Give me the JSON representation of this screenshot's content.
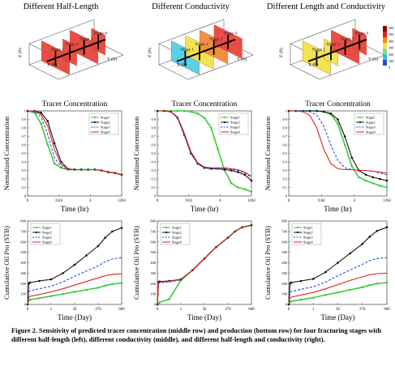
{
  "column_titles": [
    "Different Half-Length",
    "Different Conductivity",
    "Different Length and Conductivity"
  ],
  "schematic": {
    "stage_labels": [
      "Stage 1",
      "Stage 2",
      "Stage 3",
      "Stage 4"
    ],
    "axis_labels": {
      "x": "X (ft)",
      "y": "Y (ft)",
      "z": "Z (ft)"
    },
    "colorbar_ticks": [
      "600",
      "500",
      "400",
      "300",
      "200",
      "100",
      "0"
    ],
    "colors": {
      "red": "#e8453c",
      "orange": "#f08a3c",
      "yellow": "#f2e24a",
      "cyan": "#4fd0e8",
      "well": "#000000"
    },
    "panels": [
      {
        "fracs": [
          {
            "stage": "Stage 1",
            "color": "#e8453c",
            "len": 1.0
          },
          {
            "stage": "Stage 2",
            "color": "#e8453c",
            "len": 0.5
          },
          {
            "stage": "Stage 3",
            "color": "#e8453c",
            "len": 1.0
          },
          {
            "stage": "Stage 4",
            "color": "#e8453c",
            "len": 0.5
          }
        ]
      },
      {
        "fracs": [
          {
            "stage": "Stage 1",
            "color": "#4fd0e8",
            "len": 1.0
          },
          {
            "stage": "Stage 2",
            "color": "#f2e24a",
            "len": 1.0
          },
          {
            "stage": "Stage 3",
            "color": "#f08a3c",
            "len": 1.0
          },
          {
            "stage": "Stage 4",
            "color": "#e8453c",
            "len": 1.0
          }
        ]
      },
      {
        "fracs": [
          {
            "stage": "Stage 1",
            "color": "#f2e24a",
            "len": 1.0
          },
          {
            "stage": "Stage 2",
            "color": "#f2e24a",
            "len": 0.5
          },
          {
            "stage": "Stage 3",
            "color": "#e8453c",
            "len": 1.0
          },
          {
            "stage": "Stage 4",
            "color": "#e8453c",
            "len": 0.5
          }
        ]
      }
    ]
  },
  "tracer": {
    "title": "Tracer Concentration",
    "xlabel": "Time (hr)",
    "ylabel": "Normalized Concentration",
    "xticks": [
      "0",
      "0.04",
      "4",
      "1264"
    ],
    "yticks": [
      "0",
      "0.1",
      "0.2",
      "0.3",
      "0.4",
      "0.5",
      "0.6",
      "0.7",
      "0.8",
      "0.9",
      "1"
    ]
  },
  "production": {
    "xlabel": "Time (Day)",
    "ylabel": "Cumulative Oil Pro (STB)",
    "xticks": [
      "0",
      "1",
      "30",
      "270",
      "600"
    ],
    "yticks": [
      "0",
      "100",
      "200",
      "300",
      "400",
      "500",
      "600",
      "700",
      "800"
    ]
  },
  "legend_entries": [
    "Stage1",
    "Stage2",
    "Stage3",
    "Stage4"
  ],
  "series_colors": {
    "Stage1": "#3ec93e",
    "Stage2": "#111111",
    "Stage3": "#1f4fd8",
    "Stage4": "#e02020"
  },
  "chart_data": [
    {
      "type": "line",
      "panel": "tracer-half-length",
      "xlabel": "Time (hr)",
      "ylabel": "Normalized Concentration",
      "xticks": [
        "0",
        "0.04",
        "4",
        "1264"
      ],
      "ylim": [
        0,
        1
      ],
      "x": [
        0,
        0.5,
        1,
        1.5,
        2,
        2.5,
        3,
        3.5,
        4,
        4.5,
        5,
        5.5,
        6,
        6.5,
        7
      ],
      "series": [
        {
          "name": "Stage1",
          "values": [
            1.0,
            0.98,
            0.85,
            0.6,
            0.38,
            0.33,
            0.31,
            0.31,
            0.31,
            0.31,
            0.31,
            0.3,
            0.28,
            0.27,
            0.25
          ]
        },
        {
          "name": "Stage2",
          "values": [
            1.0,
            1.0,
            0.98,
            0.88,
            0.62,
            0.4,
            0.32,
            0.31,
            0.31,
            0.31,
            0.31,
            0.3,
            0.28,
            0.27,
            0.25
          ]
        },
        {
          "name": "Stage3",
          "values": [
            1.0,
            0.99,
            0.93,
            0.72,
            0.45,
            0.34,
            0.31,
            0.31,
            0.31,
            0.31,
            0.31,
            0.3,
            0.28,
            0.27,
            0.25
          ]
        },
        {
          "name": "Stage4",
          "values": [
            1.0,
            1.0,
            0.96,
            0.82,
            0.55,
            0.37,
            0.32,
            0.31,
            0.31,
            0.31,
            0.31,
            0.3,
            0.28,
            0.27,
            0.25
          ]
        }
      ]
    },
    {
      "type": "line",
      "panel": "tracer-conductivity",
      "xlabel": "Time (hr)",
      "ylabel": "Normalized Concentration",
      "xticks": [
        "0",
        "0.04",
        "4",
        "1264"
      ],
      "ylim": [
        0,
        1
      ],
      "x": [
        0,
        0.5,
        1,
        1.5,
        2,
        2.5,
        3,
        3.5,
        4,
        4.5,
        5,
        5.5,
        6,
        6.5,
        7
      ],
      "series": [
        {
          "name": "Stage1",
          "values": [
            1.0,
            1.0,
            1.0,
            1.0,
            1.0,
            0.99,
            0.97,
            0.92,
            0.8,
            0.55,
            0.3,
            0.15,
            0.1,
            0.08,
            0.05
          ]
        },
        {
          "name": "Stage2",
          "values": [
            1.0,
            1.0,
            0.99,
            0.92,
            0.72,
            0.5,
            0.38,
            0.33,
            0.32,
            0.32,
            0.31,
            0.3,
            0.28,
            0.25,
            0.18
          ]
        },
        {
          "name": "Stage3",
          "values": [
            1.0,
            1.0,
            0.99,
            0.92,
            0.72,
            0.5,
            0.38,
            0.33,
            0.32,
            0.32,
            0.32,
            0.31,
            0.3,
            0.27,
            0.22
          ]
        },
        {
          "name": "Stage4",
          "values": [
            1.0,
            1.0,
            0.99,
            0.93,
            0.74,
            0.52,
            0.39,
            0.34,
            0.33,
            0.33,
            0.33,
            0.32,
            0.31,
            0.28,
            0.23
          ]
        }
      ]
    },
    {
      "type": "line",
      "panel": "tracer-length-conductivity",
      "xlabel": "Time (hr)",
      "ylabel": "Normalized Concentration",
      "xticks": [
        "0",
        "0.04",
        "4",
        "1264"
      ],
      "ylim": [
        0,
        1
      ],
      "x": [
        0,
        0.5,
        1,
        1.5,
        2,
        2.5,
        3,
        3.5,
        4,
        4.5,
        5,
        5.5,
        6,
        6.5,
        7
      ],
      "series": [
        {
          "name": "Stage1",
          "values": [
            1.0,
            1.0,
            1.0,
            1.0,
            1.0,
            0.99,
            0.96,
            0.85,
            0.6,
            0.35,
            0.22,
            0.18,
            0.15,
            0.12,
            0.1
          ]
        },
        {
          "name": "Stage2",
          "values": [
            1.0,
            1.0,
            1.0,
            1.0,
            1.0,
            0.99,
            0.97,
            0.9,
            0.7,
            0.45,
            0.3,
            0.25,
            0.22,
            0.2,
            0.18
          ]
        },
        {
          "name": "Stage3",
          "values": [
            1.0,
            1.0,
            1.0,
            0.99,
            0.95,
            0.82,
            0.6,
            0.42,
            0.33,
            0.31,
            0.3,
            0.3,
            0.29,
            0.27,
            0.25
          ]
        },
        {
          "name": "Stage4",
          "values": [
            1.0,
            1.0,
            0.99,
            0.95,
            0.8,
            0.55,
            0.38,
            0.32,
            0.31,
            0.31,
            0.3,
            0.3,
            0.29,
            0.28,
            0.27
          ]
        }
      ]
    },
    {
      "type": "line",
      "panel": "production-half-length",
      "xlabel": "Time (Day)",
      "ylabel": "Cumulative Oil Pro (STB)",
      "xticks": [
        "0",
        "1",
        "30",
        "270",
        "600"
      ],
      "ylim": [
        0,
        800
      ],
      "x": [
        0,
        0.05,
        0.1,
        0.5,
        1,
        1.5,
        2,
        2.5,
        3,
        3.3,
        3.6,
        4
      ],
      "series": [
        {
          "name": "Stage1",
          "values": [
            0,
            40,
            45,
            60,
            80,
            100,
            120,
            140,
            160,
            180,
            195,
            205
          ]
        },
        {
          "name": "Stage2",
          "values": [
            0,
            200,
            210,
            225,
            240,
            300,
            380,
            470,
            560,
            640,
            700,
            735
          ]
        },
        {
          "name": "Stage3",
          "values": [
            0,
            120,
            130,
            150,
            175,
            215,
            270,
            320,
            370,
            410,
            435,
            450
          ]
        },
        {
          "name": "Stage4",
          "values": [
            0,
            70,
            78,
            95,
            120,
            150,
            185,
            220,
            255,
            275,
            288,
            295
          ]
        }
      ]
    },
    {
      "type": "line",
      "panel": "production-conductivity",
      "xlabel": "Time (Day)",
      "ylabel": "Cumulative Oil Pro (STB)",
      "xticks": [
        "0",
        "1",
        "30",
        "270",
        "600"
      ],
      "ylim": [
        0,
        800
      ],
      "x": [
        0,
        0.05,
        0.1,
        0.5,
        1,
        1.5,
        2,
        2.5,
        3,
        3.3,
        3.6,
        4
      ],
      "series": [
        {
          "name": "Stage1",
          "values": [
            0,
            10,
            20,
            50,
            230,
            330,
            440,
            550,
            640,
            700,
            740,
            760
          ]
        },
        {
          "name": "Stage2",
          "values": [
            0,
            215,
            220,
            225,
            240,
            330,
            440,
            550,
            640,
            700,
            740,
            760
          ]
        },
        {
          "name": "Stage3",
          "values": [
            0,
            200,
            210,
            215,
            235,
            330,
            440,
            550,
            640,
            700,
            740,
            760
          ]
        },
        {
          "name": "Stage4",
          "values": [
            0,
            205,
            215,
            222,
            238,
            330,
            440,
            550,
            640,
            700,
            740,
            760
          ]
        }
      ]
    },
    {
      "type": "line",
      "panel": "production-length-conductivity",
      "xlabel": "Time (Day)",
      "ylabel": "Cumulative Oil Pro (STB)",
      "xticks": [
        "0",
        "1",
        "30",
        "270",
        "600"
      ],
      "ylim": [
        0,
        800
      ],
      "x": [
        0,
        0.05,
        0.1,
        0.5,
        1,
        1.5,
        2,
        2.5,
        3,
        3.3,
        3.6,
        4
      ],
      "series": [
        {
          "name": "Stage1",
          "values": [
            0,
            20,
            30,
            45,
            65,
            90,
            115,
            140,
            165,
            185,
            200,
            210
          ]
        },
        {
          "name": "Stage2",
          "values": [
            0,
            200,
            210,
            225,
            245,
            310,
            400,
            490,
            580,
            650,
            705,
            740
          ]
        },
        {
          "name": "Stage3",
          "values": [
            0,
            110,
            125,
            145,
            170,
            215,
            275,
            330,
            385,
            420,
            440,
            450
          ]
        },
        {
          "name": "Stage4",
          "values": [
            0,
            60,
            70,
            90,
            115,
            150,
            190,
            230,
            265,
            285,
            295,
            300
          ]
        }
      ]
    }
  ],
  "caption": "Figure 2. Sensitivity of predicted tracer concentration (middle row) and production (bottom row) for four fracturing stages with different half-length (left), different conductivity (middle), and different half-length and conductivity (right)."
}
